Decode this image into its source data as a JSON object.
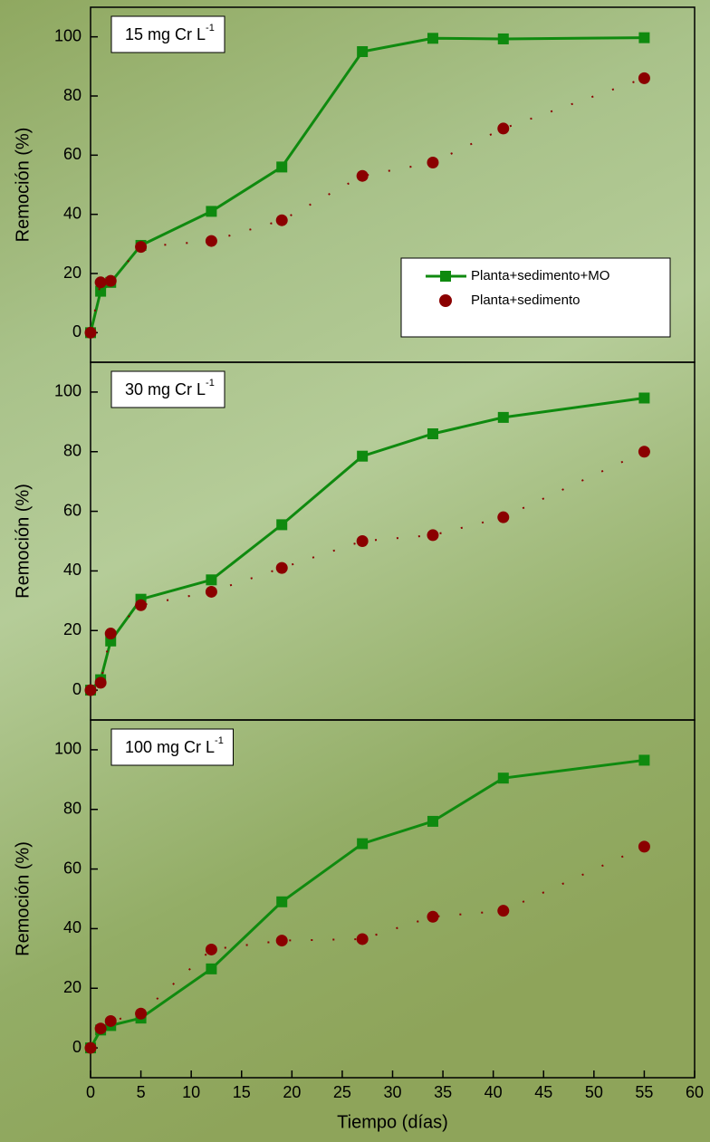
{
  "chart_data": [
    {
      "type": "line",
      "annotation": "15 mg Cr L",
      "annotation_sup": "-1",
      "ylabel": "Remoción (%)",
      "x": [
        0,
        1,
        2,
        5,
        12,
        19,
        27,
        34,
        41,
        55
      ],
      "xlim": [
        0,
        60
      ],
      "ylim": [
        -10,
        110
      ],
      "yticks": [
        0,
        20,
        40,
        60,
        80,
        100
      ],
      "series": [
        {
          "name": "Planta+sedimento+MO",
          "color": "#0f8a0f",
          "values": [
            0,
            14,
            17,
            29.5,
            41,
            56,
            95,
            99.5,
            99.3,
            99.7
          ]
        },
        {
          "name": "Planta+sedimento",
          "color": "#8b0000",
          "values": [
            0,
            17,
            17.5,
            29,
            31,
            38,
            53,
            57.5,
            69,
            86
          ]
        }
      ]
    },
    {
      "type": "line",
      "annotation": "30 mg Cr L",
      "annotation_sup": "-1",
      "ylabel": "Remoción (%)",
      "x": [
        0,
        1,
        2,
        5,
        12,
        19,
        27,
        34,
        41,
        55
      ],
      "xlim": [
        0,
        60
      ],
      "ylim": [
        -10,
        110
      ],
      "yticks": [
        0,
        20,
        40,
        60,
        80,
        100
      ],
      "series": [
        {
          "color": "#0f8a0f",
          "values": [
            0,
            3.5,
            16.5,
            30.5,
            37,
            55.5,
            78.5,
            86,
            91.5,
            98
          ]
        },
        {
          "color": "#8b0000",
          "values": [
            0,
            2.5,
            19,
            28.5,
            33,
            41,
            50,
            52,
            58,
            80
          ]
        }
      ]
    },
    {
      "type": "line",
      "annotation": "100 mg Cr L",
      "annotation_sup": "-1",
      "ylabel": "Remoción (%)",
      "xlabel": "Tiempo (días)",
      "x": [
        0,
        1,
        2,
        5,
        12,
        19,
        27,
        34,
        41,
        55
      ],
      "xlim": [
        0,
        60
      ],
      "xticks": [
        0,
        5,
        10,
        15,
        20,
        25,
        30,
        35,
        40,
        45,
        50,
        55,
        60
      ],
      "ylim": [
        -10,
        110
      ],
      "yticks": [
        0,
        20,
        40,
        60,
        80,
        100
      ],
      "series": [
        {
          "color": "#0f8a0f",
          "values": [
            0,
            6,
            7.5,
            10,
            26.5,
            49,
            68.5,
            76,
            90.5,
            96.5
          ]
        },
        {
          "color": "#8b0000",
          "values": [
            0,
            6.5,
            9,
            11.5,
            33,
            36,
            36.5,
            44,
            46,
            67.5
          ]
        }
      ]
    }
  ]
}
